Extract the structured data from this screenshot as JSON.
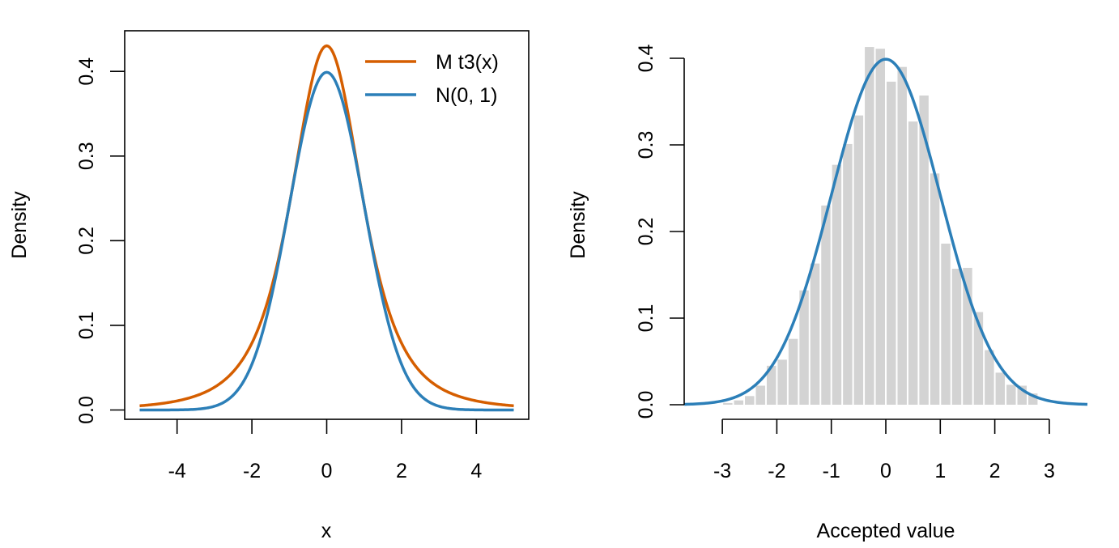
{
  "chart_data": [
    {
      "type": "line",
      "xlabel": "x",
      "ylabel": "Density",
      "xlim": [
        -5.4,
        5.4
      ],
      "ylim": [
        -0.011,
        0.448
      ],
      "x_ticks": [
        "-4",
        "-2",
        "0",
        "2",
        "4"
      ],
      "x_tick_values": [
        -4,
        -2,
        0,
        2,
        4
      ],
      "y_ticks": [
        "0.0",
        "0.1",
        "0.2",
        "0.3",
        "0.4"
      ],
      "y_tick_values": [
        0.0,
        0.1,
        0.2,
        0.3,
        0.4
      ],
      "box": true,
      "legend_position": "top-right",
      "series": [
        {
          "name": "M t3(x)",
          "color": "#D55E00",
          "x": [
            -5,
            -4.5,
            -4,
            -3.5,
            -3,
            -2.5,
            -2,
            -1.5,
            -1,
            -0.5,
            0,
            0.5,
            1,
            1.5,
            2,
            2.5,
            3,
            3.5,
            4,
            4.5,
            5
          ],
          "y": [
            0.0044,
            0.0061,
            0.0087,
            0.0131,
            0.0209,
            0.0358,
            0.0645,
            0.1182,
            0.207,
            0.3243,
            0.4302,
            0.3243,
            0.207,
            0.1182,
            0.0645,
            0.0358,
            0.0209,
            0.0131,
            0.0087,
            0.0061,
            0.0044
          ]
        },
        {
          "name": "N(0, 1)",
          "color": "#2C7FB8",
          "x": [
            -5,
            -4.5,
            -4,
            -3.5,
            -3,
            -2.5,
            -2,
            -1.5,
            -1,
            -0.5,
            0,
            0.5,
            1,
            1.5,
            2,
            2.5,
            3,
            3.5,
            4,
            4.5,
            5
          ],
          "y": [
            0.0,
            0.0,
            0.0001,
            0.0009,
            0.0044,
            0.0175,
            0.054,
            0.1295,
            0.242,
            0.3521,
            0.3989,
            0.3521,
            0.242,
            0.1295,
            0.054,
            0.0175,
            0.0044,
            0.0009,
            0.0001,
            0.0,
            0.0
          ]
        }
      ]
    },
    {
      "type": "bar",
      "xlabel": "Accepted value",
      "ylabel": "Density",
      "xlim": [
        -3.7,
        3.7
      ],
      "ylim": [
        0,
        0.42
      ],
      "x_ticks": [
        "-3",
        "-2",
        "-1",
        "0",
        "1",
        "2",
        "3"
      ],
      "x_tick_values": [
        -3,
        -2,
        -1,
        0,
        1,
        2,
        3
      ],
      "y_ticks": [
        "0.0",
        "0.1",
        "0.2",
        "0.3",
        "0.4"
      ],
      "y_tick_values": [
        0.0,
        0.1,
        0.2,
        0.3,
        0.4
      ],
      "box": false,
      "histogram": {
        "color": "#D3D3D3",
        "bin_width": 0.2,
        "bin_starts": [
          -3.0,
          -2.8,
          -2.6,
          -2.4,
          -2.2,
          -2.0,
          -1.8,
          -1.6,
          -1.4,
          -1.2,
          -1.0,
          -0.8,
          -0.6,
          -0.4,
          -0.2,
          0.0,
          0.2,
          0.4,
          0.6,
          0.8,
          1.0,
          1.2,
          1.4,
          1.6,
          1.8,
          2.0,
          2.2,
          2.4,
          2.6
        ],
        "values": [
          0.002,
          0.005,
          0.01,
          0.022,
          0.045,
          0.052,
          0.076,
          0.132,
          0.163,
          0.23,
          0.277,
          0.301,
          0.334,
          0.413,
          0.411,
          0.373,
          0.39,
          0.327,
          0.357,
          0.267,
          0.186,
          0.157,
          0.158,
          0.107,
          0.063,
          0.037,
          0.023,
          0.022,
          0.013
        ]
      },
      "series": [
        {
          "name": "",
          "color": "#2C7FB8",
          "x": [
            -3.7,
            -3.5,
            -3,
            -2.5,
            -2,
            -1.5,
            -1,
            -0.5,
            0,
            0.5,
            1,
            1.5,
            2,
            2.5,
            3,
            3.5,
            3.7
          ],
          "y": [
            0.0004,
            0.0009,
            0.0044,
            0.0175,
            0.054,
            0.1295,
            0.242,
            0.3521,
            0.3989,
            0.3521,
            0.242,
            0.1295,
            0.054,
            0.0175,
            0.0044,
            0.0009,
            0.0004
          ]
        }
      ]
    }
  ]
}
